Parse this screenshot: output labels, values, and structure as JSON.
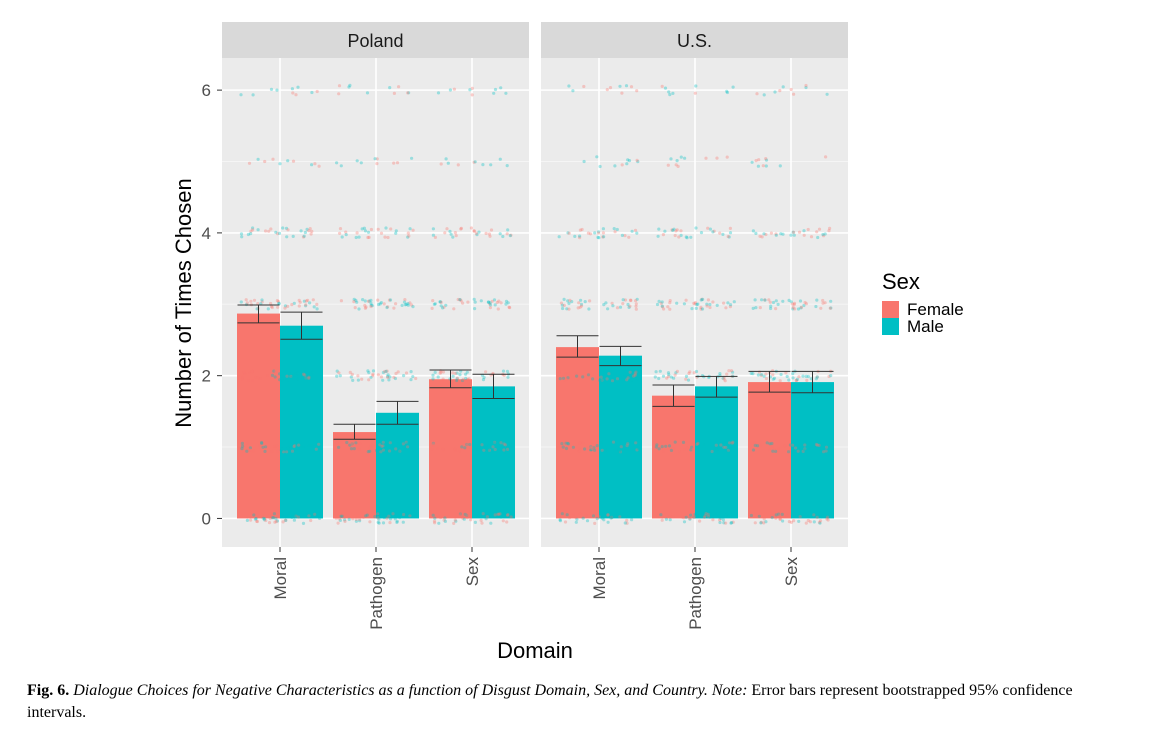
{
  "chart_data": {
    "type": "bar",
    "facets": [
      "Poland",
      "U.S."
    ],
    "categories": [
      "Moral",
      "Pathogen",
      "Sex"
    ],
    "xlabel": "Domain",
    "ylabel": "Number of Times Chosen",
    "ylim": [
      -0.4,
      6.45
    ],
    "yticks": [
      0,
      2,
      4,
      6
    ],
    "grid": true,
    "legend": {
      "title": "Sex",
      "position": "right",
      "entries": [
        {
          "name": "Female",
          "color": "#F8766D"
        },
        {
          "name": "Male",
          "color": "#00BFC4"
        }
      ]
    },
    "series": [
      {
        "name": "Female",
        "color": "#F8766D",
        "values": {
          "Poland": [
            2.87,
            1.21,
            1.95
          ],
          "U.S.": [
            2.4,
            1.72,
            1.91
          ]
        },
        "ci_low": {
          "Poland": [
            2.74,
            1.11,
            1.83
          ],
          "U.S.": [
            2.26,
            1.57,
            1.77
          ]
        },
        "ci_high": {
          "Poland": [
            2.99,
            1.32,
            2.08
          ],
          "U.S.": [
            2.56,
            1.87,
            2.06
          ]
        }
      },
      {
        "name": "Male",
        "color": "#00BFC4",
        "values": {
          "Poland": [
            2.7,
            1.48,
            1.85
          ],
          "U.S.": [
            2.28,
            1.85,
            1.91
          ]
        },
        "ci_low": {
          "Poland": [
            2.51,
            1.32,
            1.68
          ],
          "U.S.": [
            2.14,
            1.7,
            1.76
          ]
        },
        "ci_high": {
          "Poland": [
            2.89,
            1.64,
            2.02
          ],
          "U.S.": [
            2.41,
            1.99,
            2.06
          ]
        }
      }
    ],
    "jitter_levels": [
      0,
      1,
      2,
      3,
      4,
      5,
      6
    ]
  },
  "caption": {
    "fig_label": "Fig. 6.",
    "title_italic": "Dialogue Choices for Negative Characteristics as a function of Disgust Domain, Sex, and Country.",
    "note_label": "Note:",
    "note_text": "Error bars represent bootstrapped 95% confidence intervals."
  }
}
